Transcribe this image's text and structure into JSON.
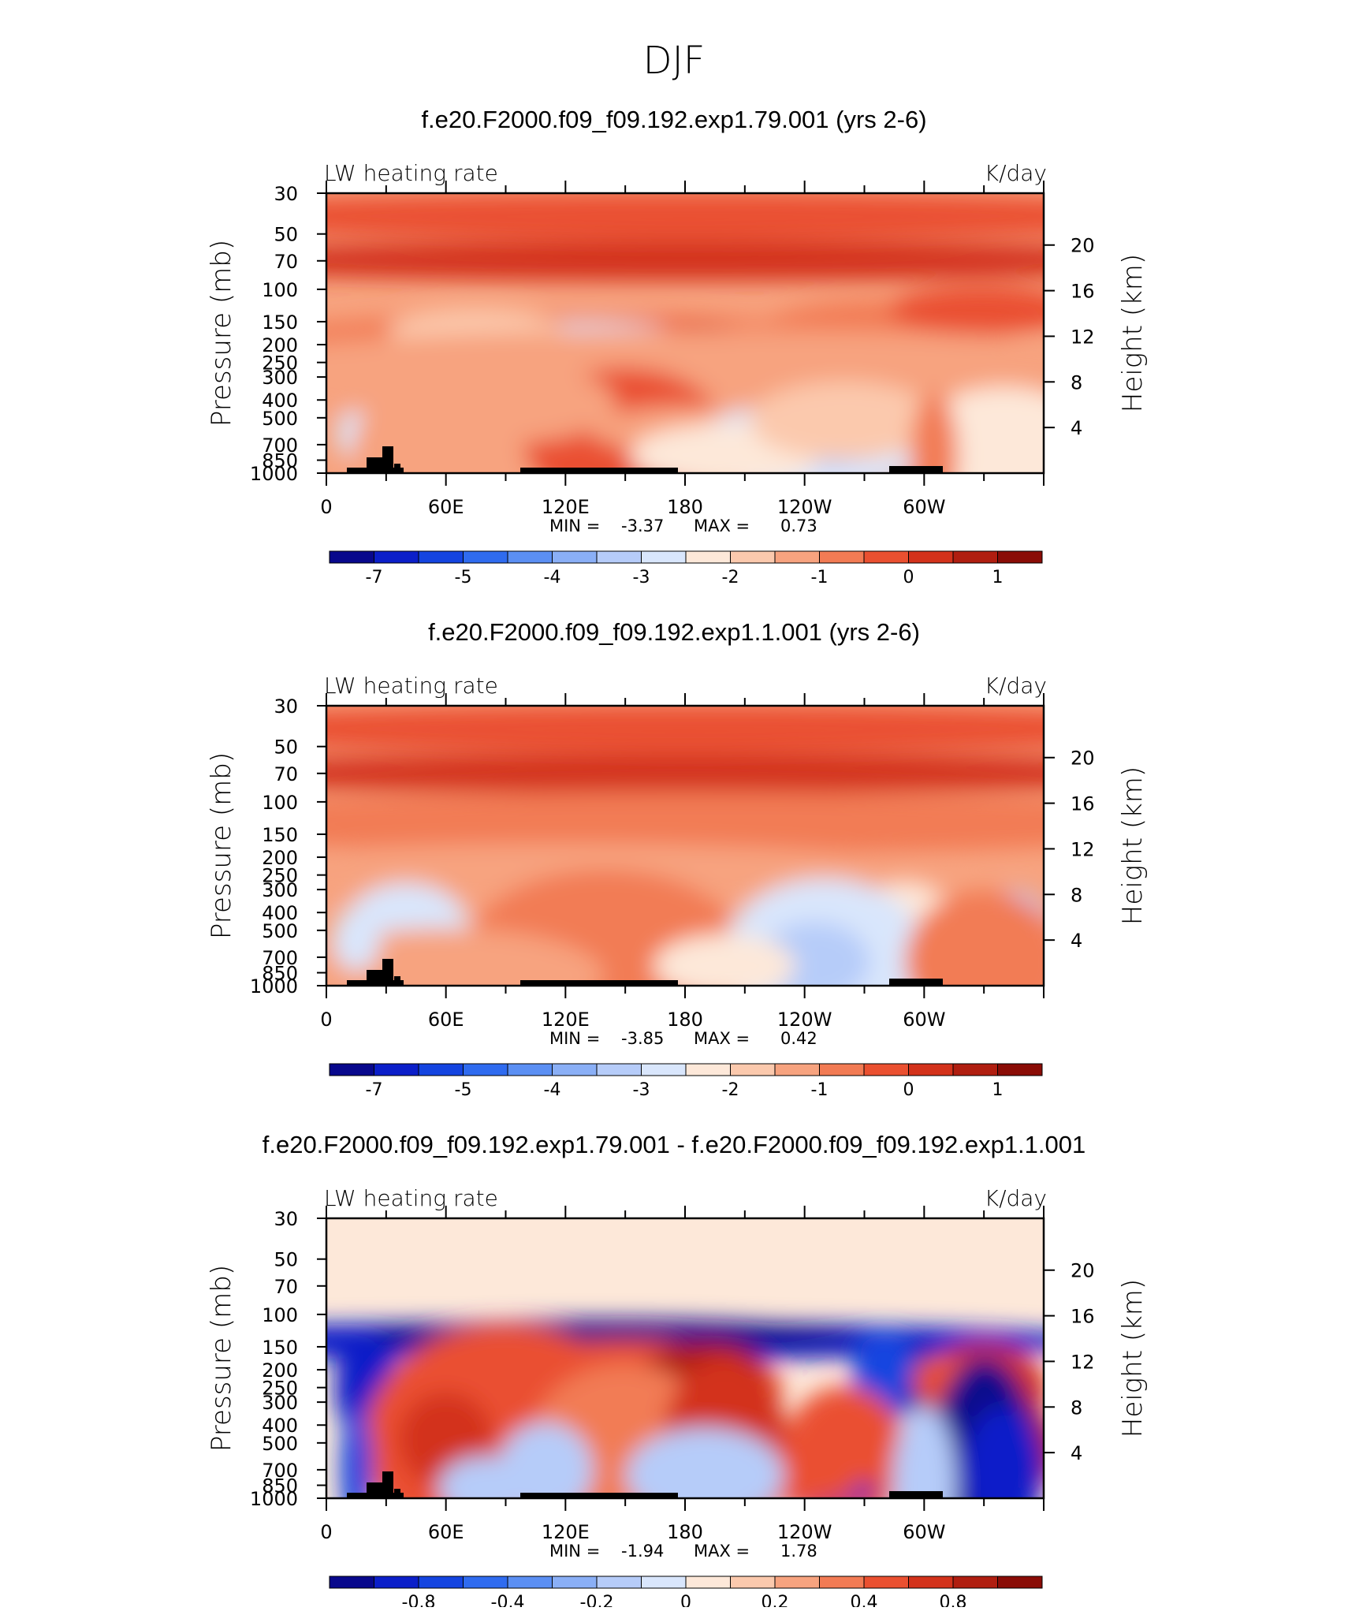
{
  "figure_title": "DJF",
  "chart_data": [
    {
      "type": "heatmap",
      "title": "f.e20.F2000.f09_f09.192.exp1.79.001 (yrs 2-6)",
      "left_label": "LW heating rate",
      "right_label": "K/day",
      "ylabel": "Pressure (mb)",
      "ylabel_right": "Height (km)",
      "x_ticks": [
        "0",
        "60E",
        "120E",
        "180",
        "120W",
        "60W"
      ],
      "y_ticks": [
        "30",
        "50",
        "70",
        "100",
        "150",
        "200",
        "250",
        "300",
        "400",
        "500",
        "700",
        "850",
        "1000"
      ],
      "height_ticks": [
        "20",
        "16",
        "12",
        "8",
        "4"
      ],
      "min_label": "MIN =",
      "min_value": "-3.37",
      "max_label": "MAX =",
      "max_value": "0.73",
      "colorbar_labels": [
        "-7",
        "-5",
        "-4",
        "-3",
        "-2",
        "-1",
        "0",
        "1"
      ]
    },
    {
      "type": "heatmap",
      "title": "f.e20.F2000.f09_f09.192.exp1.1.001 (yrs 2-6)",
      "left_label": "LW heating rate",
      "right_label": "K/day",
      "ylabel": "Pressure (mb)",
      "ylabel_right": "Height (km)",
      "x_ticks": [
        "0",
        "60E",
        "120E",
        "180",
        "120W",
        "60W"
      ],
      "y_ticks": [
        "30",
        "50",
        "70",
        "100",
        "150",
        "200",
        "250",
        "300",
        "400",
        "500",
        "700",
        "850",
        "1000"
      ],
      "height_ticks": [
        "20",
        "16",
        "12",
        "8",
        "4"
      ],
      "min_label": "MIN =",
      "min_value": "-3.85",
      "max_label": "MAX =",
      "max_value": "0.42",
      "colorbar_labels": [
        "-7",
        "-5",
        "-4",
        "-3",
        "-2",
        "-1",
        "0",
        "1"
      ]
    },
    {
      "type": "heatmap",
      "title": "f.e20.F2000.f09_f09.192.exp1.79.001 - f.e20.F2000.f09_f09.192.exp1.1.001",
      "left_label": "LW heating rate",
      "right_label": "K/day",
      "ylabel": "Pressure (mb)",
      "ylabel_right": "Height (km)",
      "x_ticks": [
        "0",
        "60E",
        "120E",
        "180",
        "120W",
        "60W"
      ],
      "y_ticks": [
        "30",
        "50",
        "70",
        "100",
        "150",
        "200",
        "250",
        "300",
        "400",
        "500",
        "700",
        "850",
        "1000"
      ],
      "height_ticks": [
        "20",
        "16",
        "12",
        "8",
        "4"
      ],
      "min_label": "MIN =",
      "min_value": "-1.94",
      "max_label": "MAX =",
      "max_value": "1.78",
      "colorbar_labels": [
        "-0.8",
        "-0.4",
        "-0.2",
        "0",
        "0.2",
        "0.4",
        "0.8"
      ]
    }
  ],
  "colors": {
    "scale": [
      "#08088c",
      "#0b1fc9",
      "#1444e0",
      "#2f6bef",
      "#5b8ff3",
      "#8aaff6",
      "#b6ccf9",
      "#d9e6fc",
      "#fde8d9",
      "#fbc9ad",
      "#f7a37f",
      "#f27b54",
      "#ea5030",
      "#d3321b",
      "#b01e10",
      "#8a0c06"
    ],
    "terrain": "#000000",
    "axis": "#000000"
  }
}
